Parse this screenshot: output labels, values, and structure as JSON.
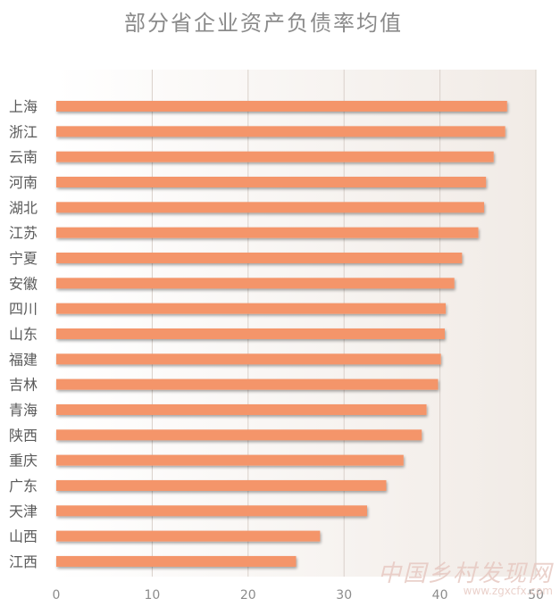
{
  "chart_data": {
    "type": "bar",
    "orientation": "horizontal",
    "title": "部分省企业资产负债率均值",
    "categories": [
      "上海",
      "浙江",
      "云南",
      "河南",
      "湖北",
      "江苏",
      "宁夏",
      "安徽",
      "四川",
      "山东",
      "福建",
      "吉林",
      "青海",
      "陕西",
      "重庆",
      "广东",
      "天津",
      "山西",
      "江西"
    ],
    "values": [
      47.0,
      46.8,
      45.6,
      44.8,
      44.6,
      44.0,
      42.3,
      41.5,
      40.6,
      40.5,
      40.1,
      39.8,
      38.6,
      38.1,
      36.2,
      34.4,
      32.4,
      27.5,
      25.0
    ],
    "xticks": [
      "0",
      "10",
      "20",
      "30",
      "40",
      "50"
    ],
    "xlim": [
      0,
      50
    ],
    "grid": true,
    "bar_color": "#f4956a",
    "plot_background": "#f3eeea",
    "gridline_color": "#d9d0ca"
  },
  "watermark": {
    "main": "中国乡村发现网",
    "sub": "www.zgxcfx.com"
  }
}
